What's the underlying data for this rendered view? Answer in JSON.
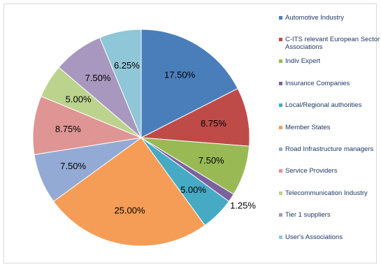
{
  "chart_data": {
    "type": "pie",
    "categories": [
      "Automotive Industry",
      "C-ITS relevant European Sector Associations",
      "Indiv Expert",
      "Insurance Companies",
      "Local/Regional authorities",
      "Member States",
      "Road Infrastructure managers",
      "Service Providers",
      "Telecommunication Industry",
      "Tier 1 suppliers",
      "User's Associations"
    ],
    "values": [
      17.5,
      8.75,
      7.5,
      1.25,
      5.0,
      25.0,
      7.5,
      8.75,
      5.0,
      7.5,
      6.25
    ],
    "labels": [
      "17.50%",
      "8.75%",
      "7.50%",
      "1.25%",
      "5.00%",
      "25.00%",
      "7.50%",
      "8.75%",
      "5.00%",
      "7.50%",
      "6.25%"
    ],
    "colors": [
      "#4a7ebb",
      "#be4b48",
      "#98b954",
      "#7d60a0",
      "#46aac5",
      "#f59d56",
      "#93aad4",
      "#de9593",
      "#bcd38e",
      "#a898bf",
      "#8fc6d8"
    ],
    "legend_position": "right"
  }
}
